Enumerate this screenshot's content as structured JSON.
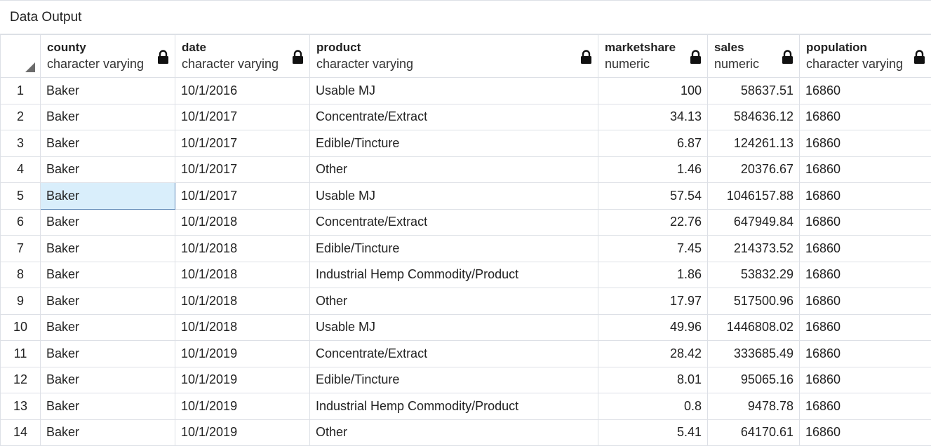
{
  "panel": {
    "title": "Data Output"
  },
  "columns": [
    {
      "name": "county",
      "type": "character varying",
      "icon": "lock-icon"
    },
    {
      "name": "date",
      "type": "character varying",
      "icon": "lock-icon"
    },
    {
      "name": "product",
      "type": "character varying",
      "icon": "lock-icon"
    },
    {
      "name": "marketshare",
      "type": "numeric",
      "icon": "lock-icon"
    },
    {
      "name": "sales",
      "type": "numeric",
      "icon": "lock-icon"
    },
    {
      "name": "population",
      "type": "character varying",
      "icon": "lock-icon"
    }
  ],
  "rows": [
    {
      "n": "1",
      "county": "Baker",
      "date": "10/1/2016",
      "product": "Usable MJ",
      "marketshare": "100",
      "sales": "58637.51",
      "population": "16860"
    },
    {
      "n": "2",
      "county": "Baker",
      "date": "10/1/2017",
      "product": "Concentrate/Extract",
      "marketshare": "34.13",
      "sales": "584636.12",
      "population": "16860"
    },
    {
      "n": "3",
      "county": "Baker",
      "date": "10/1/2017",
      "product": "Edible/Tincture",
      "marketshare": "6.87",
      "sales": "124261.13",
      "population": "16860"
    },
    {
      "n": "4",
      "county": "Baker",
      "date": "10/1/2017",
      "product": "Other",
      "marketshare": "1.46",
      "sales": "20376.67",
      "population": "16860"
    },
    {
      "n": "5",
      "county": "Baker",
      "date": "10/1/2017",
      "product": "Usable MJ",
      "marketshare": "57.54",
      "sales": "1046157.88",
      "population": "16860"
    },
    {
      "n": "6",
      "county": "Baker",
      "date": "10/1/2018",
      "product": "Concentrate/Extract",
      "marketshare": "22.76",
      "sales": "647949.84",
      "population": "16860"
    },
    {
      "n": "7",
      "county": "Baker",
      "date": "10/1/2018",
      "product": "Edible/Tincture",
      "marketshare": "7.45",
      "sales": "214373.52",
      "population": "16860"
    },
    {
      "n": "8",
      "county": "Baker",
      "date": "10/1/2018",
      "product": "Industrial Hemp Commodity/Product",
      "marketshare": "1.86",
      "sales": "53832.29",
      "population": "16860"
    },
    {
      "n": "9",
      "county": "Baker",
      "date": "10/1/2018",
      "product": "Other",
      "marketshare": "17.97",
      "sales": "517500.96",
      "population": "16860"
    },
    {
      "n": "10",
      "county": "Baker",
      "date": "10/1/2018",
      "product": "Usable MJ",
      "marketshare": "49.96",
      "sales": "1446808.02",
      "population": "16860"
    },
    {
      "n": "11",
      "county": "Baker",
      "date": "10/1/2019",
      "product": "Concentrate/Extract",
      "marketshare": "28.42",
      "sales": "333685.49",
      "population": "16860"
    },
    {
      "n": "12",
      "county": "Baker",
      "date": "10/1/2019",
      "product": "Edible/Tincture",
      "marketshare": "8.01",
      "sales": "95065.16",
      "population": "16860"
    },
    {
      "n": "13",
      "county": "Baker",
      "date": "10/1/2019",
      "product": "Industrial Hemp Commodity/Product",
      "marketshare": "0.8",
      "sales": "9478.78",
      "population": "16860"
    },
    {
      "n": "14",
      "county": "Baker",
      "date": "10/1/2019",
      "product": "Other",
      "marketshare": "5.41",
      "sales": "64170.61",
      "population": "16860"
    }
  ],
  "selection": {
    "row": 5,
    "column": "county",
    "highlight_color": "#d9eefb"
  }
}
